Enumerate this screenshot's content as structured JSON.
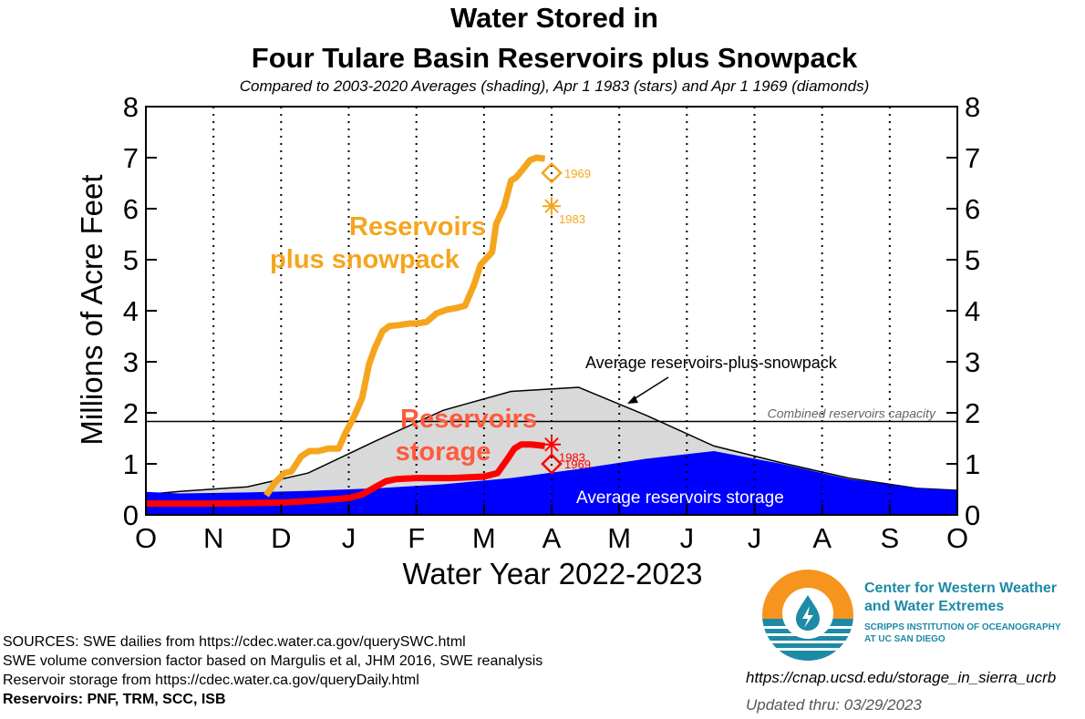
{
  "chart_data": {
    "type": "line",
    "title_lines": [
      "Water Stored in",
      "Four Tulare Basin Reservoirs plus Snowpack"
    ],
    "subtitle": "Compared to 2003-2020 Averages (shading), Apr 1 1983 (stars) and Apr 1 1969 (diamonds)",
    "xlabel": "Water Year 2022-2023",
    "ylabel": "Millions of Acre Feet",
    "xlim": [
      0,
      12
    ],
    "ylim": [
      0,
      8
    ],
    "y_ticks": [
      "0",
      "1",
      "2",
      "3",
      "4",
      "5",
      "6",
      "7",
      "8"
    ],
    "x_ticks": [
      "O",
      "N",
      "D",
      "J",
      "F",
      "M",
      "A",
      "M",
      "J",
      "J",
      "A",
      "S",
      "O"
    ],
    "x_units": "months since Oct 1, 2022",
    "vertical_dotted_gridlines": true,
    "capacity": {
      "label": "Combined reservoirs capacity",
      "value": 1.83
    },
    "series": [
      {
        "name": "Average reservoirs-plus-snowpack",
        "style": "gray-shaded-area",
        "color": "#d9d9d9",
        "x": [
          0,
          0.5,
          1.5,
          2.4,
          3.4,
          4.4,
          5.4,
          6.4,
          7.4,
          8.4,
          9.4,
          10.4,
          11.4,
          12
        ],
        "y": [
          0.4,
          0.46,
          0.55,
          0.82,
          1.45,
          2.05,
          2.42,
          2.5,
          1.95,
          1.35,
          1.02,
          0.72,
          0.52,
          0.48
        ]
      },
      {
        "name": "Average reservoirs storage",
        "style": "blue-shaded-area",
        "color": "#0000ff",
        "x": [
          0,
          0.5,
          1.5,
          2.4,
          3.4,
          4.4,
          5.4,
          6.4,
          7.4,
          8.4,
          9.4,
          10.4,
          11.4,
          12
        ],
        "y": [
          0.45,
          0.42,
          0.44,
          0.47,
          0.52,
          0.6,
          0.72,
          0.9,
          1.1,
          1.25,
          1.0,
          0.7,
          0.52,
          0.48
        ]
      },
      {
        "name": "Reservoirs plus snowpack",
        "style": "thick-line",
        "color": "#f5a51d",
        "x": [
          1.78,
          1.9,
          2.05,
          2.15,
          2.3,
          2.42,
          2.55,
          2.7,
          2.85,
          2.95,
          3.05,
          3.12,
          3.2,
          3.3,
          3.38,
          3.5,
          3.6,
          3.75,
          3.9,
          4.0,
          4.15,
          4.3,
          4.45,
          4.58,
          4.72,
          4.85,
          4.95,
          5.05,
          5.12,
          5.18,
          5.3,
          5.4,
          5.48,
          5.58,
          5.68,
          5.78,
          5.9
        ],
        "y": [
          0.38,
          0.62,
          0.82,
          0.85,
          1.15,
          1.25,
          1.25,
          1.3,
          1.3,
          1.6,
          1.85,
          2.05,
          2.3,
          2.95,
          3.25,
          3.6,
          3.7,
          3.72,
          3.75,
          3.75,
          3.78,
          3.95,
          4.02,
          4.05,
          4.1,
          4.5,
          4.9,
          5.05,
          5.15,
          5.7,
          6.05,
          6.55,
          6.62,
          6.78,
          6.95,
          7.0,
          6.98
        ]
      },
      {
        "name": "Reservoirs storage",
        "style": "thick-line",
        "color": "#ff0000",
        "x": [
          0,
          1.0,
          2.0,
          2.5,
          3.0,
          3.2,
          3.4,
          3.55,
          3.7,
          4.0,
          4.5,
          5.0,
          5.2,
          5.35,
          5.45,
          5.55,
          5.7,
          5.9
        ],
        "y": [
          0.22,
          0.22,
          0.24,
          0.28,
          0.33,
          0.4,
          0.55,
          0.66,
          0.7,
          0.72,
          0.72,
          0.75,
          0.82,
          1.1,
          1.3,
          1.38,
          1.38,
          1.35
        ]
      }
    ],
    "markers": [
      {
        "kind": "diamond",
        "series": "Reservoirs plus snowpack",
        "year": "1969",
        "x": 6.0,
        "y": 6.7,
        "color": "#f5a51d"
      },
      {
        "kind": "star",
        "series": "Reservoirs plus snowpack",
        "year": "1983",
        "x": 6.0,
        "y": 6.05,
        "color": "#f5a51d"
      },
      {
        "kind": "star",
        "series": "Reservoirs storage",
        "year": "1983",
        "x": 6.0,
        "y": 1.38,
        "color": "#ff0000"
      },
      {
        "kind": "diamond",
        "series": "Reservoirs storage",
        "year": "1969",
        "x": 6.0,
        "y": 1.0,
        "color": "#ff0000"
      }
    ],
    "annotations": {
      "snowpack_label_line1": "Reservoirs",
      "snowpack_label_line2": "plus snowpack",
      "storage_label_line1": "Reservoirs",
      "storage_label_line2": "storage",
      "avg_snowpack_label": "Average reservoirs-plus-snowpack",
      "avg_storage_label": "Average reservoirs storage"
    }
  },
  "footer": {
    "sources": [
      "SOURCES: SWE dailies from https://cdec.water.ca.gov/querySWC.html",
      "SWE volume conversion factor based on Margulis et al, JHM 2016, SWE reanalysis",
      "Reservoir storage from https://cdec.water.ca.gov/queryDaily.html"
    ],
    "reservoirs": "Reservoirs: PNF, TRM, SCC, ISB",
    "url": "https://cnap.ucsd.edu/storage_in_sierra_ucrb",
    "updated": "Updated thru: 03/29/2023",
    "org_name_line1": "Center for Western Weather",
    "org_name_line2": "and Water Extremes",
    "org_sub_line1": "SCRIPPS INSTITUTION OF OCEANOGRAPHY",
    "org_sub_line2": "AT UC SAN DIEGO"
  },
  "colors": {
    "snowpack": "#f5a51d",
    "storage": "#ff0000",
    "storage_label": "#ff5a3c",
    "avg_snowpack_fill": "#d9d9d9",
    "avg_storage_fill": "#0000ff",
    "logo_orange": "#f7941d",
    "logo_teal": "#1d8aa6"
  }
}
